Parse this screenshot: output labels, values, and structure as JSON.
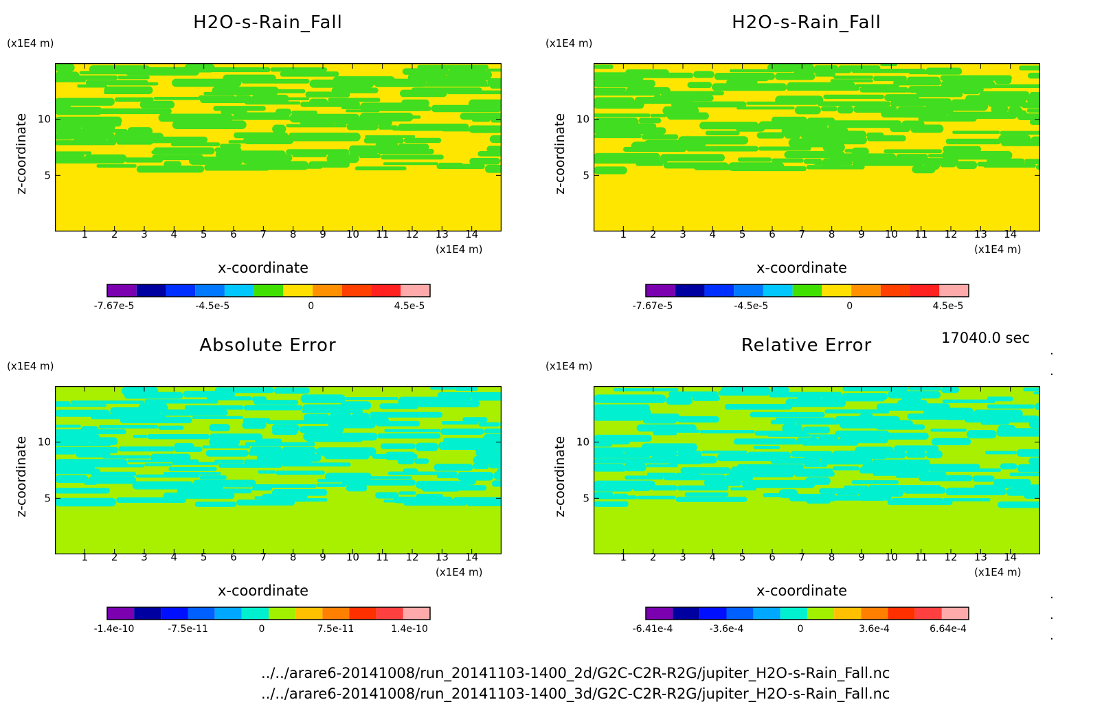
{
  "panels": [
    {
      "title": "H2O-s-Rain_Fall",
      "xlabel": "x-coordinate",
      "ylabel": "z-coordinate",
      "x_unit": "(x1E4 m)",
      "y_unit": "(x1E4 m)",
      "xticks": [
        "1",
        "2",
        "3",
        "4",
        "5",
        "6",
        "7",
        "8",
        "9",
        "10",
        "11",
        "12",
        "13",
        "14"
      ],
      "yticks": [
        "5",
        "10"
      ],
      "colorbar": {
        "colors": [
          "#7a00b0",
          "#0000a0",
          "#0030ff",
          "#0078ff",
          "#00c8ff",
          "#40e000",
          "#ffe000",
          "#ff9000",
          "#ff4000",
          "#ff2020",
          "#ffaaaa"
        ],
        "labels": [
          "-7.67e-5",
          "-4.5e-5",
          "0",
          "4.5e-5"
        ]
      },
      "colors": {
        "dominant": "#ffe600",
        "secondary": "#40dd20"
      }
    },
    {
      "title": "H2O-s-Rain_Fall",
      "xlabel": "x-coordinate",
      "ylabel": "z-coordinate",
      "x_unit": "(x1E4 m)",
      "y_unit": "(x1E4 m)",
      "xticks": [
        "1",
        "2",
        "3",
        "4",
        "5",
        "6",
        "7",
        "8",
        "9",
        "10",
        "11",
        "12",
        "13",
        "14"
      ],
      "yticks": [
        "5",
        "10"
      ],
      "colorbar": {
        "colors": [
          "#7a00b0",
          "#0000a0",
          "#0030ff",
          "#0078ff",
          "#00c8ff",
          "#40e000",
          "#ffe000",
          "#ff9000",
          "#ff4000",
          "#ff2020",
          "#ffaaaa"
        ],
        "labels": [
          "-7.67e-5",
          "-4.5e-5",
          "0",
          "4.5e-5"
        ]
      },
      "colors": {
        "dominant": "#ffe600",
        "secondary": "#40dd20"
      }
    },
    {
      "title": "Absolute Error",
      "xlabel": "x-coordinate",
      "ylabel": "z-coordinate",
      "x_unit": "(x1E4 m)",
      "y_unit": "(x1E4 m)",
      "xticks": [
        "1",
        "2",
        "3",
        "4",
        "5",
        "6",
        "7",
        "8",
        "9",
        "10",
        "11",
        "12",
        "13",
        "14"
      ],
      "yticks": [
        "5",
        "10"
      ],
      "colorbar": {
        "colors": [
          "#7a00b0",
          "#0000a0",
          "#0010ff",
          "#0060ff",
          "#00a8ff",
          "#00f0d0",
          "#a0f000",
          "#ffc000",
          "#ff8000",
          "#ff3000",
          "#ff4040",
          "#ffaaaa"
        ],
        "labels": [
          "-1.4e-10",
          "-7.5e-11",
          "0",
          "7.5e-11",
          "1.4e-10"
        ]
      },
      "colors": {
        "dominant": "#a8f000",
        "secondary": "#00f0d0"
      }
    },
    {
      "title": "Relative Error",
      "xlabel": "x-coordinate",
      "ylabel": "z-coordinate",
      "x_unit": "(x1E4 m)",
      "y_unit": "(x1E4 m)",
      "xticks": [
        "1",
        "2",
        "3",
        "4",
        "5",
        "6",
        "7",
        "8",
        "9",
        "10",
        "11",
        "12",
        "13",
        "14"
      ],
      "yticks": [
        "5",
        "10"
      ],
      "colorbar": {
        "colors": [
          "#7a00b0",
          "#0000a0",
          "#0010ff",
          "#0060ff",
          "#00a8ff",
          "#00f0d0",
          "#a0f000",
          "#ffc000",
          "#ff8000",
          "#ff3000",
          "#ff4040",
          "#ffaaaa"
        ],
        "labels": [
          "-6.41e-4",
          "-3.6e-4",
          "0",
          "3.6e-4",
          "6.64e-4"
        ]
      },
      "colors": {
        "dominant": "#a8f000",
        "secondary": "#00f0d0"
      }
    }
  ],
  "time_label": "17040.0 sec",
  "files": [
    "../../arare6-20141008/run_20141103-1400_2d/G2C-C2R-R2G/jupiter_H2O-s-Rain_Fall.nc",
    "../../arare6-20141008/run_20141103-1400_3d/G2C-C2R-R2G/jupiter_H2O-s-Rain_Fall.nc"
  ],
  "chart_data": [
    {
      "type": "heatmap",
      "title": "H2O-s-Rain_Fall",
      "xlabel": "x-coordinate",
      "ylabel": "z-coordinate",
      "xlim": [
        0,
        15
      ],
      "ylim": [
        0,
        15
      ],
      "colorbar_ticks": [
        "-7.67e-5",
        "-4.5e-5",
        "0",
        "4.5e-5"
      ]
    },
    {
      "type": "heatmap",
      "title": "H2O-s-Rain_Fall",
      "xlabel": "x-coordinate",
      "ylabel": "z-coordinate",
      "xlim": [
        0,
        15
      ],
      "ylim": [
        0,
        15
      ],
      "colorbar_ticks": [
        "-7.67e-5",
        "-4.5e-5",
        "0",
        "4.5e-5"
      ]
    },
    {
      "type": "heatmap",
      "title": "Absolute Error",
      "xlabel": "x-coordinate",
      "ylabel": "z-coordinate",
      "xlim": [
        0,
        15
      ],
      "ylim": [
        0,
        15
      ],
      "colorbar_ticks": [
        "-1.4e-10",
        "-7.5e-11",
        "0",
        "7.5e-11",
        "1.4e-10"
      ]
    },
    {
      "type": "heatmap",
      "title": "Relative Error",
      "xlabel": "x-coordinate",
      "ylabel": "z-coordinate",
      "xlim": [
        0,
        15
      ],
      "ylim": [
        0,
        15
      ],
      "colorbar_ticks": [
        "-6.41e-4",
        "-3.6e-4",
        "0",
        "3.6e-4",
        "6.64e-4"
      ]
    }
  ]
}
